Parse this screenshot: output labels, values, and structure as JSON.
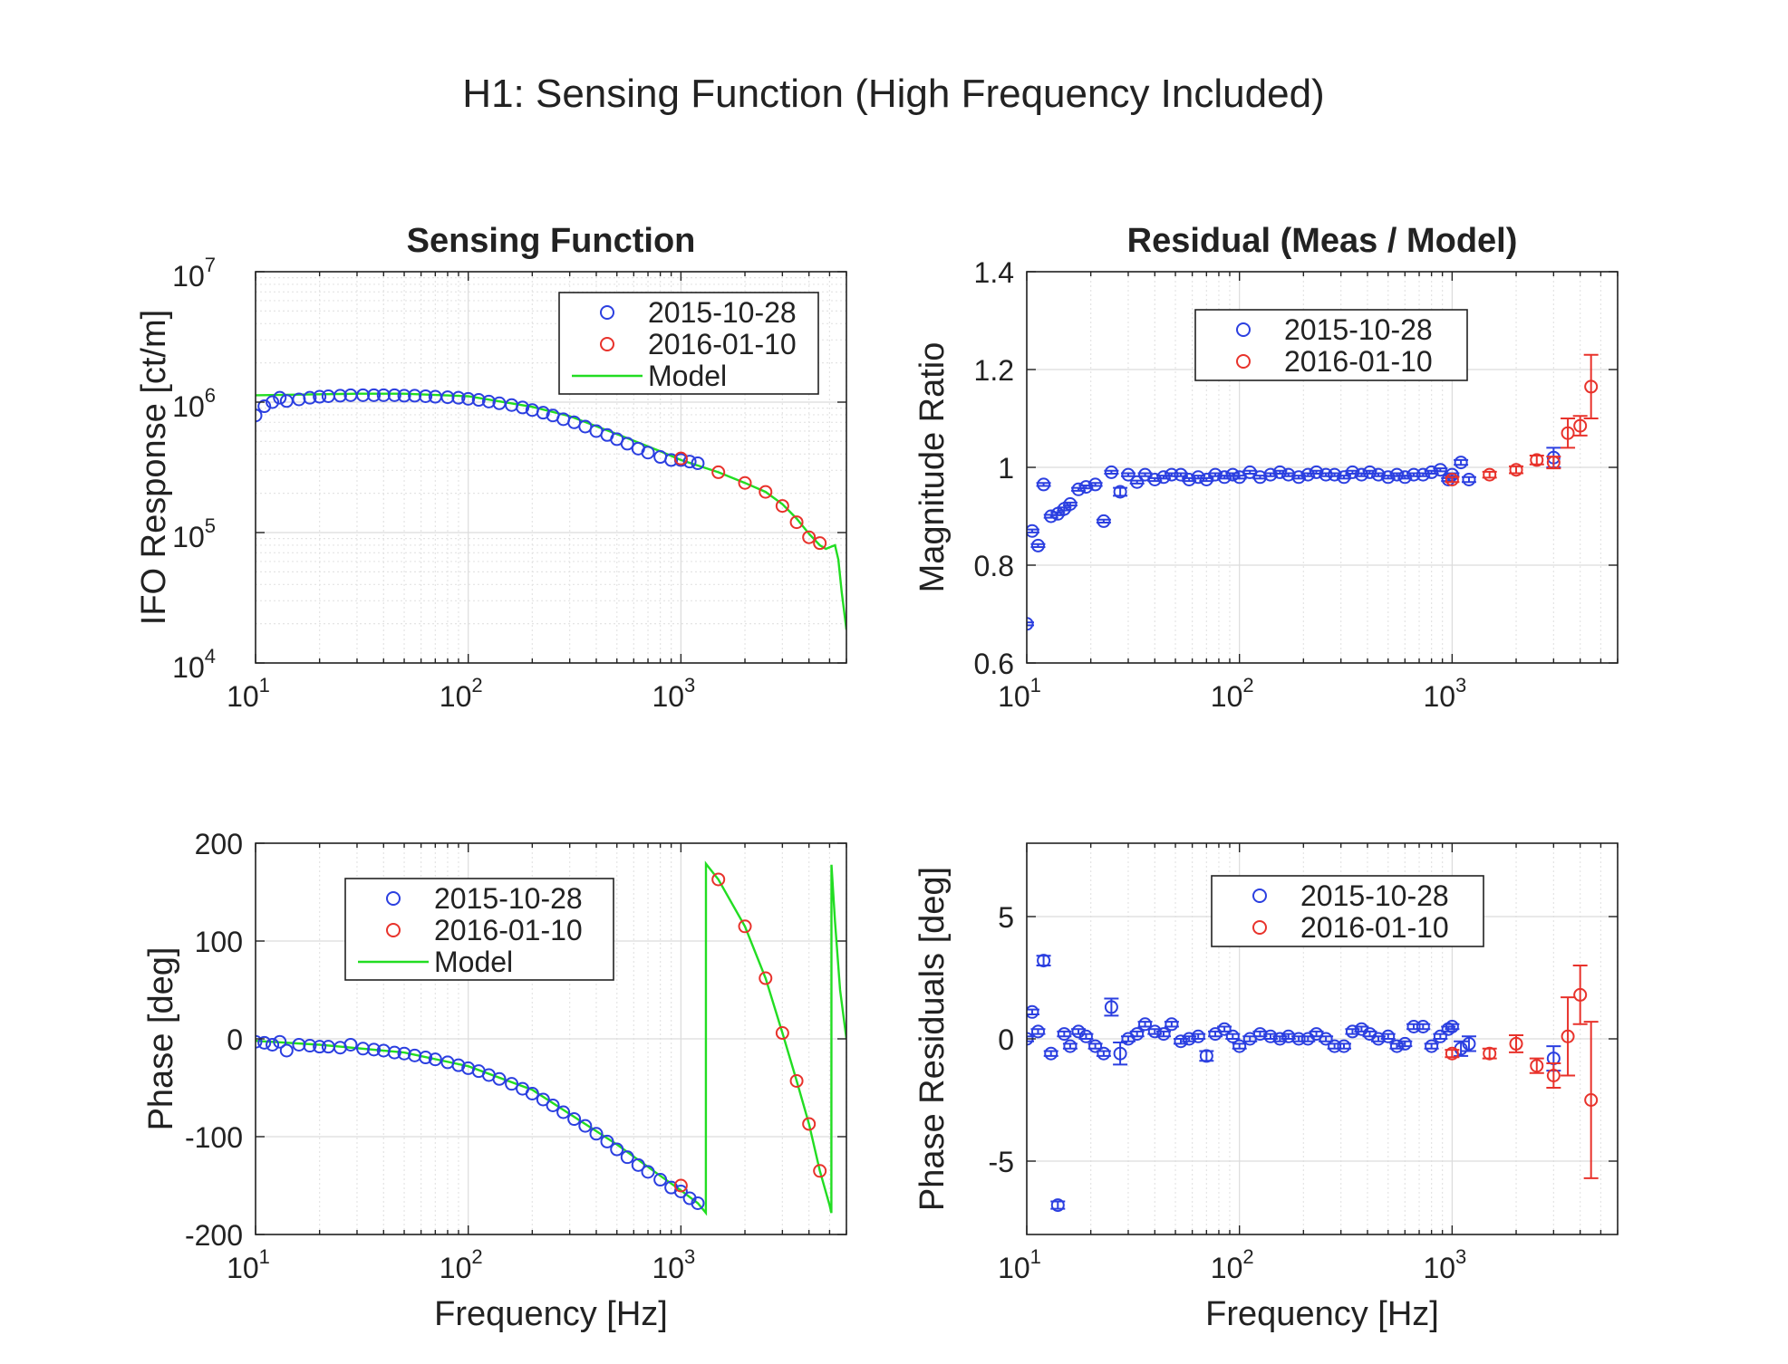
{
  "figure_title": "H1: Sensing Function (High Frequency Included)",
  "chart_data": [
    {
      "id": "sensing_mag",
      "type": "scatter",
      "title": "Sensing Function",
      "xlabel": "",
      "ylabel": "IFO Response [ct/m]",
      "xscale": "log",
      "yscale": "log",
      "xlim": [
        10,
        6000
      ],
      "ylim": [
        10000,
        10000000
      ],
      "x_ticks": [
        {
          "v": 10,
          "base": "10",
          "exp": "1"
        },
        {
          "v": 100,
          "base": "10",
          "exp": "2"
        },
        {
          "v": 1000,
          "base": "10",
          "exp": "3"
        }
      ],
      "y_ticks": [
        {
          "v": 10000,
          "base": "10",
          "exp": "4"
        },
        {
          "v": 100000,
          "base": "10",
          "exp": "5"
        },
        {
          "v": 1000000,
          "base": "10",
          "exp": "6"
        },
        {
          "v": 10000000,
          "base": "10",
          "exp": "7"
        }
      ],
      "grid": true,
      "legend_position": "top-right",
      "legend": [
        "2015-10-28",
        "2016-01-10",
        "Model"
      ],
      "series": [
        {
          "name": "2015-10-28",
          "color": "#2b3fe0",
          "kind": "markers",
          "x": [
            10,
            11,
            12,
            13,
            14,
            16,
            18,
            20,
            22,
            25,
            28,
            32,
            36,
            40,
            45,
            50,
            56,
            63,
            70,
            80,
            90,
            100,
            112,
            125,
            140,
            160,
            180,
            200,
            225,
            250,
            280,
            315,
            355,
            400,
            450,
            500,
            560,
            630,
            700,
            800,
            900,
            1000,
            1100,
            1200
          ],
          "y": [
            790000,
            930000,
            1000000,
            1080000,
            1020000,
            1050000,
            1080000,
            1100000,
            1110000,
            1120000,
            1130000,
            1130000,
            1130000,
            1130000,
            1130000,
            1120000,
            1120000,
            1110000,
            1100000,
            1090000,
            1080000,
            1060000,
            1040000,
            1010000,
            980000,
            950000,
            910000,
            870000,
            830000,
            790000,
            740000,
            700000,
            650000,
            600000,
            560000,
            520000,
            480000,
            440000,
            410000,
            380000,
            360000,
            360000,
            350000,
            340000
          ]
        },
        {
          "name": "2016-01-10",
          "color": "#e8322b",
          "kind": "markers",
          "x": [
            1000,
            1500,
            2000,
            2500,
            3000,
            3500,
            4000,
            4500
          ],
          "y": [
            370000,
            290000,
            240000,
            205000,
            160000,
            120000,
            92000,
            83000
          ]
        },
        {
          "name": "Model",
          "color": "#22dd22",
          "kind": "line",
          "x": [
            10,
            15,
            20,
            30,
            50,
            100,
            200,
            300,
            500,
            800,
            1000,
            1500,
            2000,
            2500,
            3000,
            3500,
            4000,
            4500,
            4800,
            5100,
            5300,
            5500,
            5700,
            6000
          ],
          "y": [
            1130000,
            1140000,
            1150000,
            1160000,
            1160000,
            1110000,
            920000,
            780000,
            570000,
            420000,
            360000,
            290000,
            240000,
            205000,
            165000,
            128000,
            98000,
            80000,
            75000,
            78000,
            80000,
            62000,
            35000,
            18000
          ]
        }
      ]
    },
    {
      "id": "residual_mag",
      "type": "scatter",
      "title": "Residual (Meas / Model)",
      "xlabel": "",
      "ylabel": "Magnitude Ratio",
      "xscale": "log",
      "yscale": "linear",
      "xlim": [
        10,
        6000
      ],
      "ylim": [
        0.6,
        1.4
      ],
      "x_ticks": [
        {
          "v": 10,
          "base": "10",
          "exp": "1"
        },
        {
          "v": 100,
          "base": "10",
          "exp": "2"
        },
        {
          "v": 1000,
          "base": "10",
          "exp": "3"
        }
      ],
      "y_ticks": [
        {
          "v": 0.6,
          "label": "0.6"
        },
        {
          "v": 0.8,
          "label": "0.8"
        },
        {
          "v": 1.0,
          "label": "1"
        },
        {
          "v": 1.2,
          "label": "1.2"
        },
        {
          "v": 1.4,
          "label": "1.4"
        }
      ],
      "grid": true,
      "legend_position": "top-center",
      "legend": [
        "2015-10-28",
        "2016-01-10"
      ],
      "series": [
        {
          "name": "2015-10-28",
          "color": "#2b3fe0",
          "kind": "markers",
          "x": [
            10,
            10.6,
            11.3,
            12,
            13,
            14,
            15,
            16,
            17.5,
            19,
            21,
            23,
            25,
            27.5,
            30,
            33,
            36,
            40,
            44,
            48,
            53,
            58,
            64,
            70,
            77,
            85,
            93,
            100,
            112,
            125,
            140,
            155,
            170,
            190,
            210,
            230,
            255,
            280,
            310,
            340,
            375,
            410,
            450,
            500,
            550,
            600,
            660,
            730,
            800,
            880,
            960,
            1000,
            1100,
            1200,
            3000
          ],
          "y": [
            0.68,
            0.87,
            0.84,
            0.965,
            0.9,
            0.905,
            0.915,
            0.925,
            0.955,
            0.96,
            0.965,
            0.89,
            0.99,
            0.95,
            0.985,
            0.97,
            0.985,
            0.975,
            0.98,
            0.985,
            0.985,
            0.975,
            0.98,
            0.975,
            0.985,
            0.98,
            0.985,
            0.98,
            0.99,
            0.98,
            0.985,
            0.99,
            0.985,
            0.98,
            0.985,
            0.99,
            0.985,
            0.985,
            0.98,
            0.99,
            0.985,
            0.99,
            0.985,
            0.98,
            0.985,
            0.98,
            0.985,
            0.985,
            0.99,
            0.995,
            0.975,
            0.985,
            1.01,
            0.975,
            1.02
          ],
          "err": [
            0.003,
            0.003,
            0.003,
            0.003,
            0.003,
            0.003,
            0.003,
            0.003,
            0.003,
            0.003,
            0.003,
            0.003,
            0.003,
            0.008,
            0.003,
            0.003,
            0.003,
            0.003,
            0.003,
            0.003,
            0.003,
            0.003,
            0.003,
            0.003,
            0.003,
            0.003,
            0.003,
            0.003,
            0.003,
            0.003,
            0.003,
            0.003,
            0.003,
            0.003,
            0.003,
            0.003,
            0.003,
            0.003,
            0.003,
            0.003,
            0.003,
            0.003,
            0.003,
            0.003,
            0.003,
            0.003,
            0.003,
            0.003,
            0.003,
            0.003,
            0.003,
            0.003,
            0.005,
            0.005,
            0.02
          ]
        },
        {
          "name": "2016-01-10",
          "color": "#e8322b",
          "kind": "markers",
          "x": [
            1000,
            1500,
            2000,
            2500,
            3000,
            3500,
            4000,
            4500
          ],
          "y": [
            0.975,
            0.985,
            0.995,
            1.015,
            1.01,
            1.07,
            1.085,
            1.165
          ],
          "err": [
            0.005,
            0.006,
            0.007,
            0.009,
            0.012,
            0.03,
            0.02,
            0.065
          ]
        }
      ]
    },
    {
      "id": "sensing_phase",
      "type": "scatter",
      "title": "",
      "xlabel": "Frequency [Hz]",
      "ylabel": "Phase [deg]",
      "xscale": "log",
      "yscale": "linear",
      "xlim": [
        10,
        6000
      ],
      "ylim": [
        -200,
        200
      ],
      "x_ticks": [
        {
          "v": 10,
          "base": "10",
          "exp": "1"
        },
        {
          "v": 100,
          "base": "10",
          "exp": "2"
        },
        {
          "v": 1000,
          "base": "10",
          "exp": "3"
        }
      ],
      "y_ticks": [
        {
          "v": -200,
          "label": "-200"
        },
        {
          "v": -100,
          "label": "-100"
        },
        {
          "v": 0,
          "label": "0"
        },
        {
          "v": 100,
          "label": "100"
        },
        {
          "v": 200,
          "label": "200"
        }
      ],
      "grid": true,
      "legend_position": "top-center",
      "legend": [
        "2015-10-28",
        "2016-01-10",
        "Model"
      ],
      "series": [
        {
          "name": "2015-10-28",
          "color": "#2b3fe0",
          "kind": "markers",
          "x": [
            10,
            11,
            12,
            13,
            14,
            16,
            18,
            20,
            22,
            25,
            28,
            32,
            36,
            40,
            45,
            50,
            56,
            63,
            70,
            80,
            90,
            100,
            112,
            125,
            140,
            160,
            180,
            200,
            225,
            250,
            280,
            315,
            355,
            400,
            450,
            500,
            560,
            630,
            700,
            800,
            900,
            1000,
            1100,
            1200
          ],
          "y": [
            -3,
            -4,
            -6,
            -3,
            -12,
            -6,
            -7,
            -8,
            -8,
            -9,
            -6,
            -10,
            -11,
            -12,
            -14,
            -15,
            -17,
            -19,
            -21,
            -24,
            -27,
            -30,
            -33,
            -37,
            -41,
            -46,
            -51,
            -56,
            -62,
            -68,
            -75,
            -82,
            -89,
            -97,
            -105,
            -113,
            -121,
            -129,
            -136,
            -144,
            -152,
            -156,
            -163,
            -168
          ]
        },
        {
          "name": "2016-01-10",
          "color": "#e8322b",
          "kind": "markers",
          "x": [
            1000,
            1500,
            2000,
            2500,
            3000,
            3500,
            4000,
            4500
          ],
          "y": [
            -150,
            163,
            115,
            62,
            6,
            -43,
            -87,
            -135
          ]
        },
        {
          "name": "Model",
          "color": "#22dd22",
          "kind": "line",
          "x": [
            10,
            20,
            50,
            100,
            200,
            500,
            800,
            1000,
            1200,
            1310,
            1311,
            1500,
            2000,
            2500,
            3000,
            3500,
            4000,
            4500,
            5000,
            5100,
            5101,
            5300,
            5600,
            6000
          ],
          "y": [
            -2,
            -6,
            -14,
            -28,
            -52,
            -108,
            -140,
            -155,
            -168,
            -178,
            179,
            163,
            115,
            62,
            6,
            -43,
            -87,
            -135,
            -170,
            -178,
            178,
            120,
            50,
            0
          ]
        }
      ]
    },
    {
      "id": "residual_phase",
      "type": "scatter",
      "title": "",
      "xlabel": "Frequency [Hz]",
      "ylabel": "Phase Residuals [deg]",
      "xscale": "log",
      "yscale": "linear",
      "xlim": [
        10,
        6000
      ],
      "ylim": [
        -8,
        8
      ],
      "x_ticks": [
        {
          "v": 10,
          "base": "10",
          "exp": "1"
        },
        {
          "v": 100,
          "base": "10",
          "exp": "2"
        },
        {
          "v": 1000,
          "base": "10",
          "exp": "3"
        }
      ],
      "y_ticks": [
        {
          "v": -5,
          "label": "-5"
        },
        {
          "v": 0,
          "label": "0"
        },
        {
          "v": 5,
          "label": "5"
        }
      ],
      "grid": true,
      "legend_position": "top-center",
      "legend": [
        "2015-10-28",
        "2016-01-10"
      ],
      "series": [
        {
          "name": "2015-10-28",
          "color": "#2b3fe0",
          "kind": "markers",
          "x": [
            10,
            10.6,
            11.3,
            12,
            13,
            14,
            15,
            16,
            17.5,
            19,
            21,
            23,
            25,
            27.5,
            30,
            33,
            36,
            40,
            44,
            48,
            53,
            58,
            64,
            70,
            77,
            85,
            93,
            100,
            112,
            125,
            140,
            155,
            170,
            190,
            210,
            230,
            255,
            280,
            310,
            340,
            375,
            410,
            450,
            500,
            550,
            600,
            660,
            730,
            800,
            880,
            960,
            1000,
            1100,
            1200,
            3000
          ],
          "y": [
            0.0,
            1.1,
            0.3,
            3.2,
            -0.6,
            -6.8,
            0.2,
            -0.3,
            0.3,
            0.1,
            -0.3,
            -0.6,
            1.3,
            -0.6,
            0.0,
            0.2,
            0.6,
            0.3,
            0.2,
            0.6,
            -0.1,
            0.0,
            0.1,
            -0.7,
            0.2,
            0.4,
            0.1,
            -0.3,
            0.0,
            0.2,
            0.1,
            0.0,
            0.1,
            0.0,
            0.0,
            0.2,
            0.0,
            -0.3,
            -0.3,
            0.3,
            0.4,
            0.2,
            0.0,
            0.1,
            -0.3,
            -0.2,
            0.5,
            0.5,
            -0.3,
            0.1,
            0.4,
            0.5,
            -0.4,
            -0.2,
            -0.8
          ],
          "err": [
            0.1,
            0.1,
            0.1,
            0.2,
            0.1,
            0.15,
            0.1,
            0.1,
            0.1,
            0.1,
            0.1,
            0.1,
            0.35,
            0.45,
            0.1,
            0.1,
            0.1,
            0.1,
            0.1,
            0.1,
            0.1,
            0.1,
            0.1,
            0.2,
            0.1,
            0.1,
            0.1,
            0.1,
            0.1,
            0.1,
            0.1,
            0.1,
            0.1,
            0.1,
            0.1,
            0.1,
            0.1,
            0.1,
            0.1,
            0.1,
            0.1,
            0.1,
            0.1,
            0.1,
            0.1,
            0.1,
            0.1,
            0.1,
            0.1,
            0.1,
            0.1,
            0.1,
            0.3,
            0.3,
            0.5
          ]
        },
        {
          "name": "2016-01-10",
          "color": "#e8322b",
          "kind": "markers",
          "x": [
            1000,
            1500,
            2000,
            2500,
            3000,
            3500,
            4000,
            4500
          ],
          "y": [
            -0.6,
            -0.6,
            -0.2,
            -1.1,
            -1.5,
            0.1,
            1.8,
            -2.5
          ],
          "err": [
            0.15,
            0.2,
            0.35,
            0.3,
            0.5,
            1.6,
            1.2,
            3.2
          ]
        }
      ]
    }
  ]
}
